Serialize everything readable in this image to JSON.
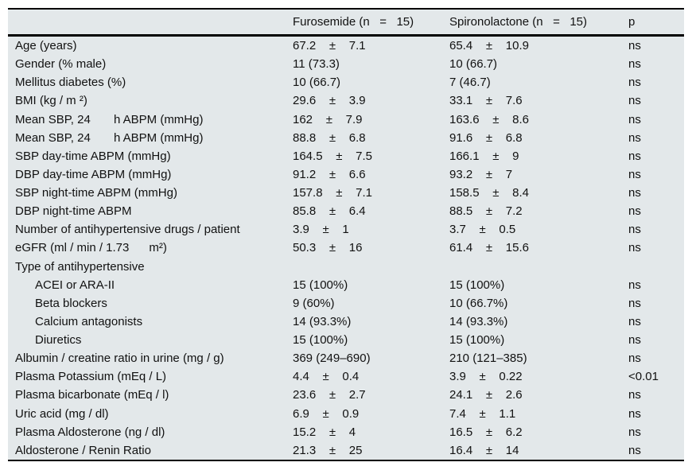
{
  "colors": {
    "table_background": "#e3e8ea",
    "rule": "#000000",
    "text": "#111111"
  },
  "table": {
    "columns": [
      "",
      "Furosemide (n   =   15)",
      "Spironolactone (n   =   15)",
      "p"
    ],
    "rows": [
      {
        "label": "Age (years)",
        "indent": false,
        "furosemide": "67.2    ±    7.1",
        "spironolactone": "65.4    ±    10.9",
        "p": "ns"
      },
      {
        "label": "Gender (% male)",
        "indent": false,
        "furosemide": "11 (73.3)",
        "spironolactone": "10 (66.7)",
        "p": "ns"
      },
      {
        "label": "Mellitus diabetes (%)",
        "indent": false,
        "furosemide": "10 (66.7)",
        "spironolactone": "7 (46.7)",
        "p": "ns"
      },
      {
        "label": "BMI (kg / m ²)",
        "indent": false,
        "furosemide": "29.6    ±    3.9",
        "spironolactone": "33.1    ±    7.6",
        "p": "ns"
      },
      {
        "label": "Mean SBP, 24       h ABPM (mmHg)",
        "indent": false,
        "furosemide": "162    ±    7.9",
        "spironolactone": "163.6    ±    8.6",
        "p": "ns"
      },
      {
        "label": "Mean SBP, 24       h ABPM (mmHg)",
        "indent": false,
        "furosemide": "88.8    ±    6.8",
        "spironolactone": "91.6    ±    6.8",
        "p": "ns"
      },
      {
        "label": "SBP day-time ABPM (mmHg)",
        "indent": false,
        "furosemide": "164.5    ±    7.5",
        "spironolactone": "166.1    ±    9",
        "p": "ns"
      },
      {
        "label": "DBP day-time ABPM (mmHg)",
        "indent": false,
        "furosemide": "91.2    ±    6.6",
        "spironolactone": "93.2    ±    7",
        "p": "ns"
      },
      {
        "label": "SBP night-time ABPM (mmHg)",
        "indent": false,
        "furosemide": "157.8    ±    7.1",
        "spironolactone": "158.5    ±    8.4",
        "p": "ns"
      },
      {
        "label": "DBP night-time ABPM",
        "indent": false,
        "furosemide": "85.8    ±    6.4",
        "spironolactone": "88.5    ±    7.2",
        "p": "ns"
      },
      {
        "label": "Number of antihypertensive drugs / patient",
        "indent": false,
        "furosemide": "3.9    ±    1",
        "spironolactone": "3.7    ±    0.5",
        "p": "ns"
      },
      {
        "label": "eGFR (ml / min / 1.73      m²)",
        "indent": false,
        "furosemide": "50.3    ±    16",
        "spironolactone": "61.4    ±    15.6",
        "p": "ns"
      },
      {
        "label": "Type of antihypertensive",
        "indent": false,
        "furosemide": "",
        "spironolactone": "",
        "p": ""
      },
      {
        "label": "ACEI or ARA-II",
        "indent": true,
        "furosemide": "15 (100%)",
        "spironolactone": "15 (100%)",
        "p": "ns"
      },
      {
        "label": "Beta blockers",
        "indent": true,
        "furosemide": "9 (60%)",
        "spironolactone": "10 (66.7%)",
        "p": "ns"
      },
      {
        "label": "Calcium antagonists",
        "indent": true,
        "furosemide": "14 (93.3%)",
        "spironolactone": "14 (93.3%)",
        "p": "ns"
      },
      {
        "label": "Diuretics",
        "indent": true,
        "furosemide": "15 (100%)",
        "spironolactone": "15 (100%)",
        "p": "ns"
      },
      {
        "label": "Albumin / creatine ratio in urine (mg / g)",
        "indent": false,
        "furosemide": "369 (249–690)",
        "spironolactone": "210 (121–385)",
        "p": "ns"
      },
      {
        "label": "Plasma Potassium (mEq / L)",
        "indent": false,
        "furosemide": "4.4    ±    0.4",
        "spironolactone": "3.9    ±    0.22",
        "p": "<0.01"
      },
      {
        "label": "Plasma bicarbonate (mEq / l)",
        "indent": false,
        "furosemide": "23.6    ±    2.7",
        "spironolactone": "24.1    ±    2.6",
        "p": "ns"
      },
      {
        "label": "Uric acid (mg / dl)",
        "indent": false,
        "furosemide": "6.9    ±    0.9",
        "spironolactone": "7.4    ±    1.1",
        "p": "ns"
      },
      {
        "label": "Plasma Aldosterone (ng / dl)",
        "indent": false,
        "furosemide": "15.2    ±    4",
        "spironolactone": "16.5    ±    6.2",
        "p": "ns"
      },
      {
        "label": "Aldosterone / Renin Ratio",
        "indent": false,
        "furosemide": "21.3    ±    25",
        "spironolactone": "16.4    ±    14",
        "p": "ns"
      }
    ]
  }
}
